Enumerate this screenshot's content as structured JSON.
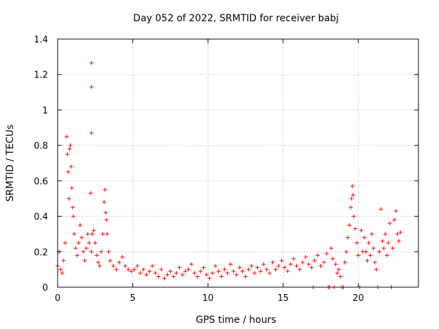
{
  "chart_data": {
    "type": "scatter",
    "title": "Day 052 of 2022, SRMTID for receiver babj",
    "xlabel": "GPS time / hours",
    "ylabel": "SRMTID / TECUs",
    "xlim": [
      0,
      24
    ],
    "ylim": [
      0,
      1.4
    ],
    "xticks": [
      0,
      5,
      10,
      15,
      20
    ],
    "xtick_labels": [
      "0",
      "5",
      "10",
      "15",
      "20"
    ],
    "yticks": [
      0,
      0.2,
      0.4,
      0.6,
      0.8,
      1.0,
      1.2,
      1.4
    ],
    "ytick_labels": [
      "0",
      "0.2",
      "0.4",
      "0.6",
      "0.8",
      "1",
      "1.2",
      "1.4"
    ],
    "grid": true,
    "marker": "plus",
    "color": "#ff0000",
    "series": [
      {
        "name": "SRMTID",
        "x": [
          0.0,
          0.1,
          0.2,
          0.3,
          0.4,
          0.5,
          0.6,
          0.65,
          0.7,
          0.75,
          0.8,
          0.85,
          0.9,
          0.95,
          1.0,
          1.05,
          1.1,
          1.2,
          1.3,
          1.4,
          1.5,
          1.6,
          1.7,
          1.8,
          1.9,
          2.0,
          2.1,
          2.2,
          2.25,
          2.25,
          2.25,
          2.25,
          2.3,
          2.4,
          2.5,
          2.6,
          2.7,
          2.8,
          2.9,
          3.0,
          3.1,
          3.15,
          3.2,
          3.25,
          3.3,
          3.4,
          3.5,
          3.7,
          3.9,
          4.1,
          4.3,
          4.5,
          4.7,
          4.9,
          5.1,
          5.3,
          5.5,
          5.7,
          5.9,
          6.1,
          6.3,
          6.5,
          6.7,
          6.9,
          7.1,
          7.3,
          7.5,
          7.7,
          7.9,
          8.1,
          8.3,
          8.5,
          8.7,
          8.9,
          9.1,
          9.3,
          9.5,
          9.7,
          9.9,
          10.1,
          10.3,
          10.5,
          10.7,
          10.9,
          11.1,
          11.3,
          11.5,
          11.7,
          11.9,
          12.1,
          12.3,
          12.5,
          12.7,
          12.9,
          13.1,
          13.3,
          13.5,
          13.7,
          13.9,
          14.1,
          14.3,
          14.5,
          14.7,
          14.9,
          15.1,
          15.3,
          15.5,
          15.7,
          15.9,
          16.1,
          16.3,
          16.5,
          16.7,
          16.9,
          17.0,
          17.1,
          17.3,
          17.5,
          17.7,
          17.9,
          18.0,
          18.1,
          18.2,
          18.3,
          18.4,
          18.5,
          18.6,
          18.7,
          18.8,
          18.9,
          19.0,
          19.1,
          19.2,
          19.3,
          19.4,
          19.5,
          19.55,
          19.6,
          19.65,
          19.7,
          19.8,
          19.9,
          20.0,
          20.1,
          20.2,
          20.3,
          20.4,
          20.5,
          20.6,
          20.7,
          20.8,
          20.9,
          21.0,
          21.1,
          21.2,
          21.3,
          21.4,
          21.5,
          21.6,
          21.7,
          21.8,
          21.9,
          22.0,
          22.1,
          22.2,
          22.3,
          22.4,
          22.5,
          22.6,
          22.7,
          22.8
        ],
        "y": [
          0.12,
          0.2,
          0.1,
          0.08,
          0.15,
          0.25,
          0.85,
          0.75,
          0.65,
          0.5,
          0.78,
          0.8,
          0.68,
          0.56,
          0.45,
          0.4,
          0.3,
          0.22,
          0.18,
          0.25,
          0.35,
          0.28,
          0.2,
          0.15,
          0.22,
          0.3,
          0.25,
          0.53,
          0.87,
          1.13,
          1.265,
          0.2,
          0.3,
          0.32,
          0.25,
          0.18,
          0.14,
          0.12,
          0.2,
          0.3,
          0.48,
          0.55,
          0.42,
          0.38,
          0.3,
          0.2,
          0.15,
          0.12,
          0.1,
          0.14,
          0.17,
          0.12,
          0.1,
          0.09,
          0.1,
          0.12,
          0.08,
          0.1,
          0.07,
          0.09,
          0.12,
          0.08,
          0.06,
          0.1,
          0.05,
          0.07,
          0.09,
          0.06,
          0.08,
          0.11,
          0.07,
          0.09,
          0.1,
          0.13,
          0.08,
          0.06,
          0.09,
          0.11,
          0.07,
          0.05,
          0.08,
          0.12,
          0.09,
          0.06,
          0.1,
          0.08,
          0.13,
          0.09,
          0.07,
          0.11,
          0.09,
          0.06,
          0.1,
          0.12,
          0.08,
          0.11,
          0.09,
          0.13,
          0.1,
          0.08,
          0.14,
          0.1,
          0.12,
          0.15,
          0.11,
          0.09,
          0.13,
          0.16,
          0.12,
          0.1,
          0.14,
          0.17,
          0.13,
          0.11,
          0.0,
          0.15,
          0.18,
          0.12,
          0.14,
          0.19,
          0.0,
          0.0,
          0.22,
          0.16,
          0.0,
          0.13,
          0.08,
          0.1,
          0.06,
          0.0,
          0.0,
          0.14,
          0.2,
          0.28,
          0.35,
          0.45,
          0.5,
          0.57,
          0.52,
          0.4,
          0.33,
          0.25,
          0.18,
          0.0,
          0.32,
          0.2,
          0.28,
          0.2,
          0.15,
          0.25,
          0.18,
          0.3,
          0.22,
          0.14,
          0.1,
          0.0,
          0.2,
          0.44,
          0.26,
          0.22,
          0.3,
          0.18,
          0.25,
          0.36,
          0.0,
          0.22,
          0.38,
          0.43,
          0.3,
          0.26,
          0.31
        ]
      }
    ]
  }
}
